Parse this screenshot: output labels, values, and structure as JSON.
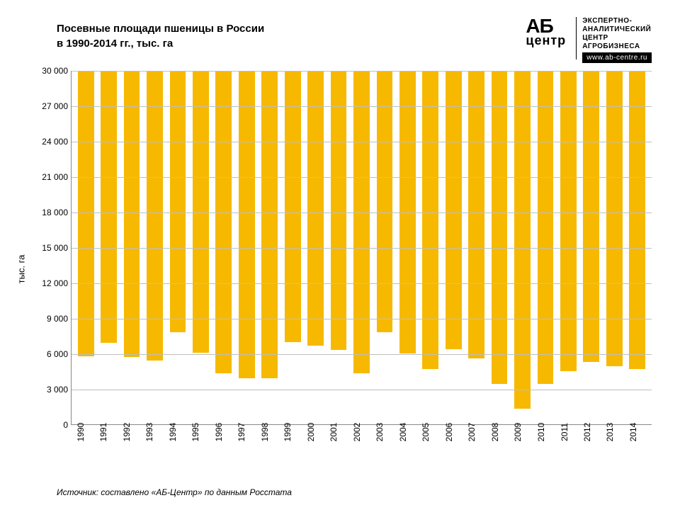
{
  "title": "Посевные площади пшеницы в России\nв 1990-2014 гг., тыс. га",
  "logo": {
    "ab": "АБ",
    "center": "центр",
    "tagline": "ЭКСПЕРТНО-\nАНАЛИТИЧЕСКИЙ\nЦЕНТР\nАГРОБИЗНЕСА",
    "url": "www.ab-centre.ru"
  },
  "source": "Источник: составлено «АБ-Центр» по данным Росстата",
  "chart": {
    "type": "bar",
    "y_axis_title": "тыс. га",
    "ylim": [
      0,
      30000
    ],
    "ytick_step": 3000,
    "y_ticks": [
      0,
      3000,
      6000,
      9000,
      12000,
      15000,
      18000,
      21000,
      24000,
      27000,
      30000
    ],
    "y_tick_labels": [
      "0",
      "3 000",
      "6 000",
      "9 000",
      "12 000",
      "15 000",
      "18 000",
      "21 000",
      "24 000",
      "27 000",
      "30 000"
    ],
    "categories": [
      "1990",
      "1991",
      "1992",
      "1993",
      "1994",
      "1995",
      "1996",
      "1997",
      "1998",
      "1999",
      "2000",
      "2001",
      "2002",
      "2003",
      "2004",
      "2005",
      "2006",
      "2007",
      "2008",
      "2009",
      "2010",
      "2011",
      "2012",
      "2013",
      "2014"
    ],
    "values": [
      24200,
      23100,
      24300,
      24600,
      22200,
      23900,
      25700,
      26100,
      26100,
      23000,
      23300,
      23700,
      25700,
      22200,
      24000,
      25300,
      23600,
      24400,
      26600,
      28700,
      26600,
      25500,
      24700,
      25100,
      25300
    ],
    "bar_color": "#f6b900",
    "bar_width": 0.7,
    "grid_color": "#bfbfbf",
    "axis_color": "#888888",
    "background_color": "#ffffff",
    "label_fontsize": 12,
    "title_fontsize": 15,
    "title_fontweight": "bold"
  }
}
